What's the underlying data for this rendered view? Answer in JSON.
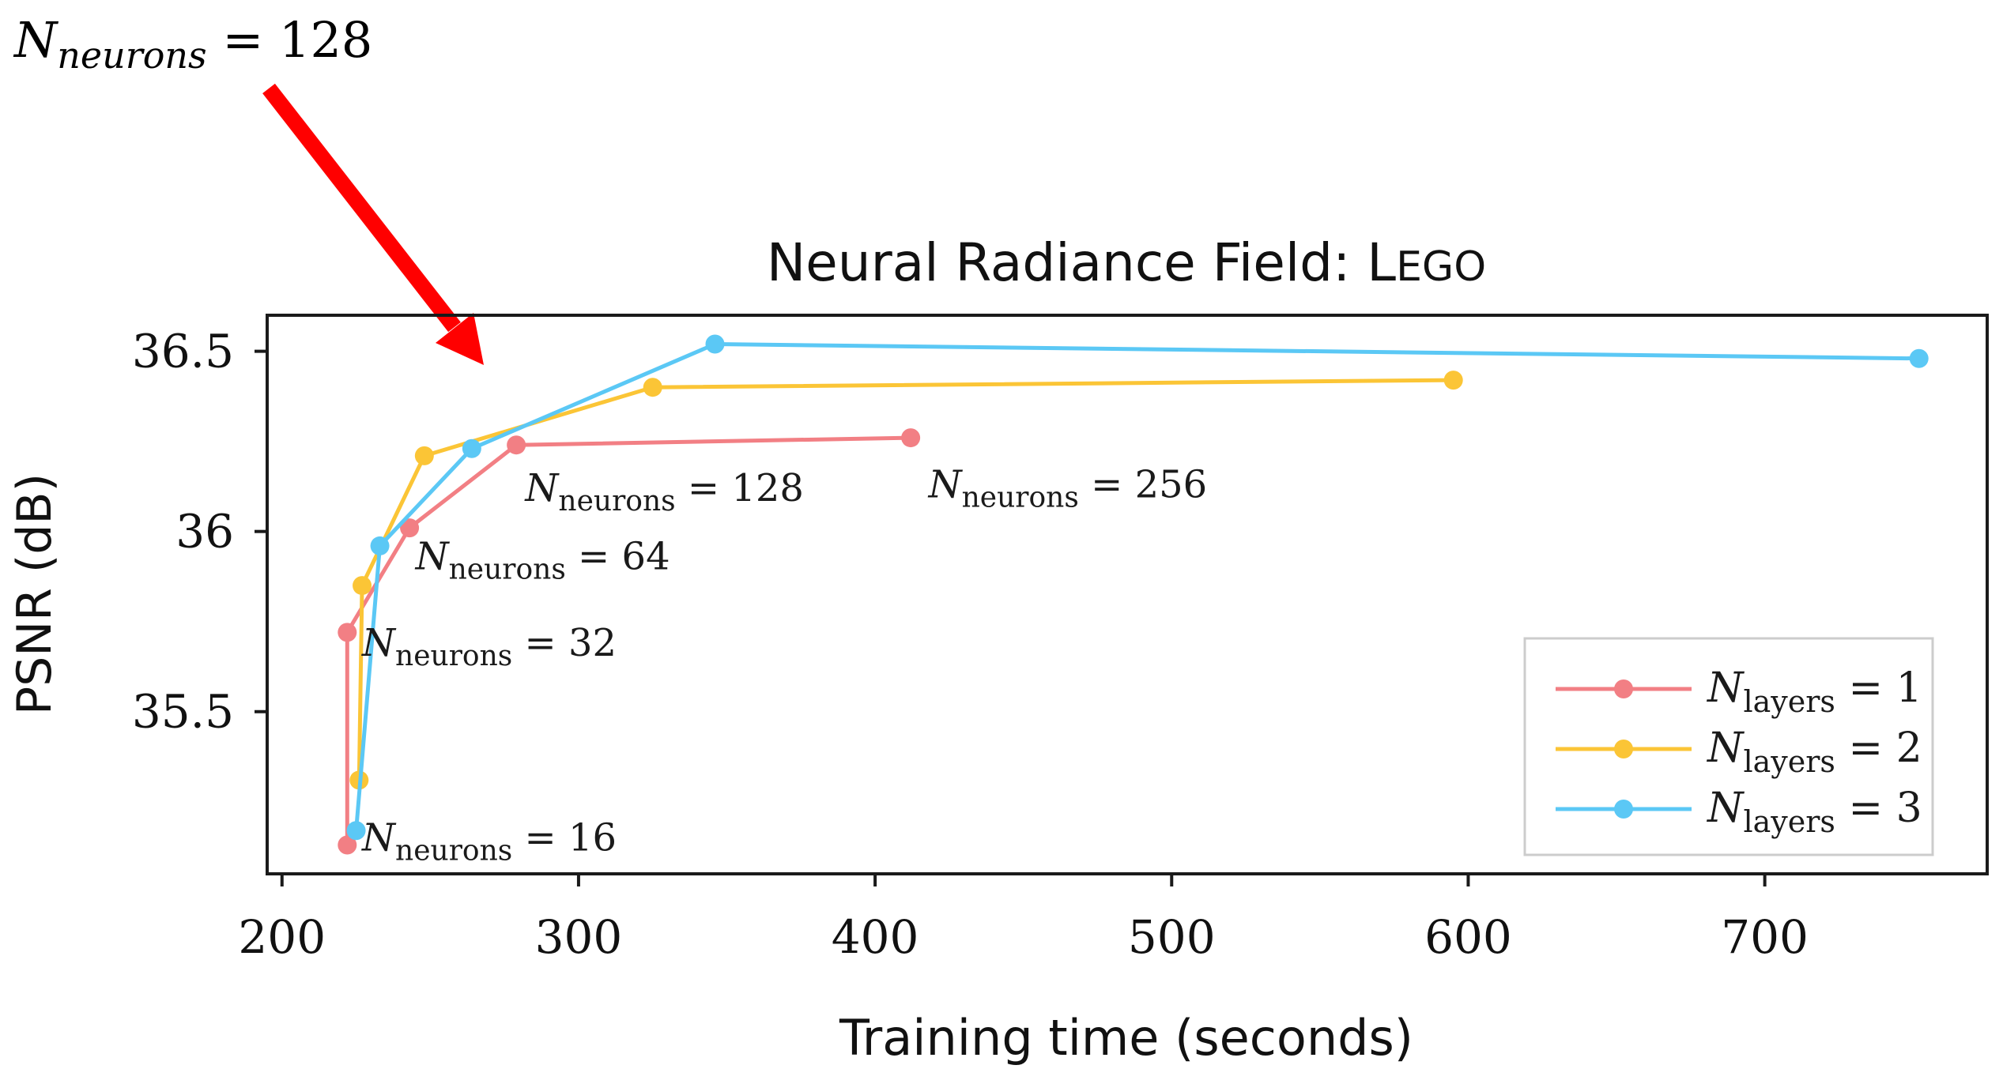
{
  "annotation": {
    "text_main": "N",
    "text_sub": "neurons",
    "text_rest": " = 128",
    "arrow_color": "#ff0000"
  },
  "chart_data": {
    "type": "line",
    "title": "Neural Radiance Field: Lego",
    "title_prefix": "Neural Radiance Field: L",
    "title_smallcaps": "EGO",
    "xlabel": "Training time (seconds)",
    "ylabel": "PSNR (dB)",
    "xlim": [
      195,
      775
    ],
    "ylim": [
      35.05,
      36.6
    ],
    "xticks": [
      200,
      300,
      400,
      500,
      600,
      700
    ],
    "xtick_labels": [
      "200",
      "300",
      "400",
      "500",
      "600",
      "700"
    ],
    "yticks": [
      35.5,
      36,
      36.5
    ],
    "ytick_labels": [
      "35.5",
      "36",
      "36.5"
    ],
    "grid": false,
    "legend_position": "bottom-right",
    "series": [
      {
        "name": "N_layers = 1",
        "label_main": "N",
        "label_sub": "layers",
        "label_rest": " = 1",
        "color": "#f27f84",
        "x": [
          222,
          222,
          243,
          279,
          412
        ],
        "y": [
          35.13,
          35.72,
          36.01,
          36.24,
          36.26
        ]
      },
      {
        "name": "N_layers = 2",
        "label_main": "N",
        "label_sub": "layers",
        "label_rest": " = 2",
        "color": "#fbc536",
        "x": [
          226,
          227,
          248,
          325,
          595
        ],
        "y": [
          35.31,
          35.85,
          36.21,
          36.4,
          36.42
        ]
      },
      {
        "name": "N_layers = 3",
        "label_main": "N",
        "label_sub": "layers",
        "label_rest": " = 3",
        "color": "#5bc8f5",
        "x": [
          225,
          233,
          264,
          346,
          752
        ],
        "y": [
          35.17,
          35.96,
          36.23,
          36.52,
          36.48
        ]
      }
    ],
    "annotations": [
      {
        "main": "N",
        "sub": "neurons",
        "rest": " = 16",
        "x": 227,
        "y": 35.15
      },
      {
        "main": "N",
        "sub": "neurons",
        "rest": " = 32",
        "x": 227,
        "y": 35.69
      },
      {
        "main": "N",
        "sub": "neurons",
        "rest": " = 64",
        "x": 245,
        "y": 35.93
      },
      {
        "main": "N",
        "sub": "neurons",
        "rest": " = 128",
        "x": 282,
        "y": 36.12
      },
      {
        "main": "N",
        "sub": "neurons",
        "rest": " = 256",
        "x": 418,
        "y": 36.13
      }
    ]
  }
}
